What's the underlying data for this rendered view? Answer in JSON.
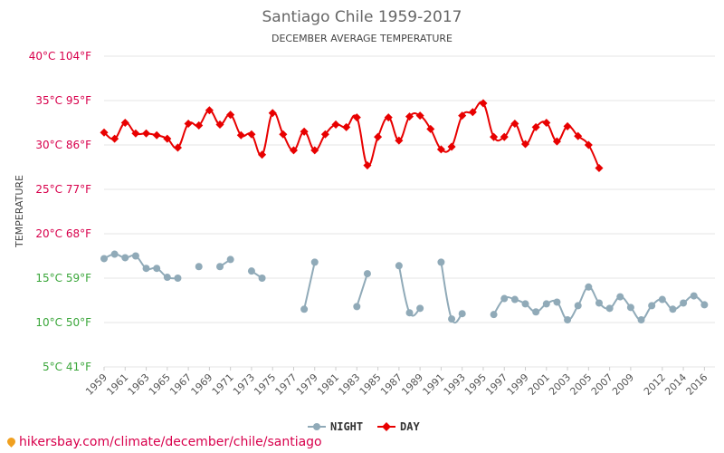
{
  "chart_data": {
    "type": "line",
    "title": "Santiago Chile 1959-2017",
    "subtitle": "DECEMBER AVERAGE TEMPERATURE",
    "ylabel": "TEMPERATURE",
    "xlim": [
      1959,
      2017
    ],
    "ylim": [
      5,
      40
    ],
    "y_tick_labels": [
      {
        "value": 40,
        "text": "40°C 104°F",
        "color": "#d8004c"
      },
      {
        "value": 35,
        "text": "35°C 95°F",
        "color": "#d8004c"
      },
      {
        "value": 30,
        "text": "30°C 86°F",
        "color": "#d8004c"
      },
      {
        "value": 25,
        "text": "25°C 77°F",
        "color": "#d8004c"
      },
      {
        "value": 20,
        "text": "20°C 68°F",
        "color": "#d8004c"
      },
      {
        "value": 15,
        "text": "15°C 59°F",
        "color": "#3aa63a"
      },
      {
        "value": 10,
        "text": "10°C 50°F",
        "color": "#3aa63a"
      },
      {
        "value": 5,
        "text": "5°C 41°F",
        "color": "#3aa63a"
      }
    ],
    "x_tick_labels": [
      "1959",
      "1961",
      "1963",
      "1965",
      "1967",
      "1969",
      "1971",
      "1973",
      "1975",
      "1977",
      "1979",
      "1981",
      "1983",
      "1985",
      "1987",
      "1989",
      "1991",
      "1993",
      "1995",
      "1997",
      "1999",
      "2001",
      "2003",
      "2005",
      "2007",
      "2009",
      "2012",
      "2014",
      "2016"
    ],
    "grid": true,
    "legend_position": "bottom-center",
    "series": [
      {
        "name": "NIGHT",
        "color": "#90aab8",
        "x": [
          1959,
          1960,
          1961,
          1962,
          1963,
          1964,
          1965,
          1966,
          1967,
          1968,
          1969,
          1970,
          1971,
          1972,
          1973,
          1974,
          1975,
          1976,
          1977,
          1978,
          1979,
          1980,
          1981,
          1982,
          1983,
          1984,
          1985,
          1986,
          1987,
          1988,
          1989,
          1990,
          1991,
          1992,
          1993,
          1994,
          1995,
          1996,
          1997,
          1998,
          1999,
          2000,
          2001,
          2002,
          2003,
          2004,
          2005,
          2006,
          2007,
          2008,
          2009,
          2010,
          2011,
          2012,
          2013,
          2014,
          2015,
          2016
        ],
        "values": [
          17.2,
          17.7,
          17.3,
          17.5,
          16.1,
          16.1,
          15.1,
          15.0,
          null,
          16.3,
          null,
          16.3,
          17.1,
          null,
          15.8,
          15.0,
          null,
          null,
          null,
          11.5,
          16.8,
          null,
          null,
          null,
          11.8,
          15.5,
          null,
          null,
          16.4,
          11.1,
          11.6,
          null,
          16.8,
          10.4,
          11.0,
          null,
          null,
          10.9,
          12.7,
          12.6,
          12.1,
          11.2,
          12.1,
          12.3,
          10.3,
          11.9,
          14.0,
          12.2,
          11.6,
          12.9,
          11.7,
          10.3,
          11.9,
          12.6,
          11.5,
          12.2,
          13.0,
          12.0
        ]
      },
      {
        "name": "DAY",
        "color": "#e80000",
        "x": [
          1959,
          1960,
          1961,
          1962,
          1963,
          1964,
          1965,
          1966,
          1967,
          1968,
          1969,
          1970,
          1971,
          1972,
          1973,
          1974,
          1975,
          1976,
          1977,
          1978,
          1979,
          1980,
          1981,
          1982,
          1983,
          1984,
          1985,
          1986,
          1987,
          1988,
          1989,
          1990,
          1991,
          1992,
          1993,
          1994,
          1995,
          1996,
          1997,
          1998,
          1999,
          2000,
          2001,
          2002,
          2003,
          2004,
          2005,
          2006
        ],
        "values": [
          31.4,
          30.7,
          32.5,
          31.3,
          31.3,
          31.1,
          30.7,
          29.7,
          32.4,
          32.2,
          33.9,
          32.3,
          33.4,
          31.1,
          31.2,
          28.9,
          33.6,
          31.2,
          29.4,
          31.5,
          29.4,
          31.2,
          32.3,
          32.0,
          33.1,
          27.7,
          30.9,
          33.1,
          30.5,
          33.2,
          33.3,
          31.8,
          29.5,
          29.8,
          33.3,
          33.7,
          34.7,
          30.9,
          30.9,
          32.4,
          30.1,
          32.0,
          32.5,
          30.4,
          32.1,
          31.0,
          30.0,
          27.4
        ]
      }
    ]
  },
  "legend": {
    "night_label": "NIGHT",
    "day_label": "DAY"
  },
  "footer": {
    "url_text": "hikersbay.com/climate/december/chile/santiago"
  }
}
